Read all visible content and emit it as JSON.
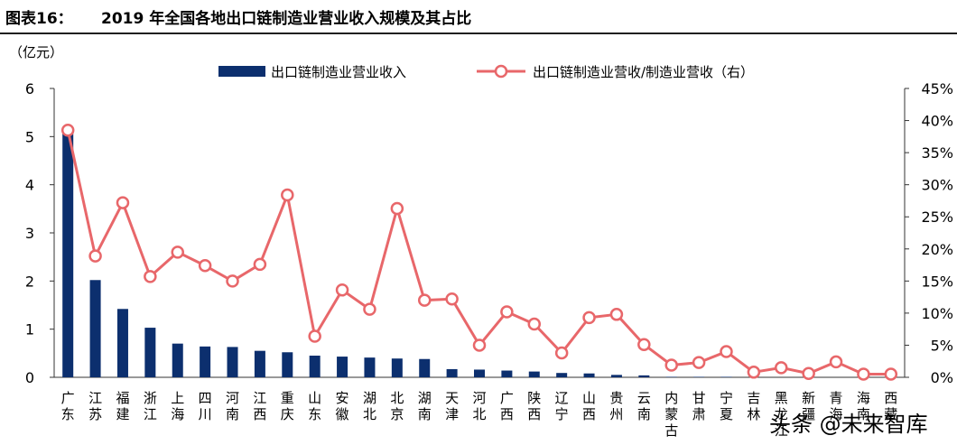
{
  "header": {
    "figure_label": "图表16：",
    "title": "2019 年全国各地出口链制造业营业收入规模及其占比"
  },
  "watermark": "头条 @未来智库",
  "colors": {
    "bar": "#0c2f6e",
    "line": "#e8676a",
    "axis": "#333333",
    "text": "#000000"
  },
  "chart_data": {
    "type": "bar+line",
    "title": "2019 年全国各地出口链制造业营业收入规模及其占比",
    "y_left_unit": "（亿元）",
    "y_left_range": [
      0,
      6
    ],
    "y_left_ticks": [
      "0",
      "1",
      "2",
      "3",
      "4",
      "5",
      "6"
    ],
    "y_right_range": [
      0,
      45
    ],
    "y_right_ticks": [
      "0%",
      "5%",
      "10%",
      "15%",
      "20%",
      "25%",
      "30%",
      "35%",
      "40%",
      "45%"
    ],
    "legend": {
      "bar": "出口链制造业营业收入",
      "line": "出口链制造业营收/制造业营收（右）"
    },
    "categories": [
      "广东",
      "江苏",
      "福建",
      "浙江",
      "上海",
      "四川",
      "河南",
      "江西",
      "重庆",
      "山东",
      "安徽",
      "湖北",
      "北京",
      "湖南",
      "天津",
      "河北",
      "广西",
      "陕西",
      "辽宁",
      "山西",
      "贵州",
      "云南",
      "内蒙古",
      "甘肃",
      "宁夏",
      "吉林",
      "黑龙江",
      "新疆",
      "青海",
      "海南",
      "西藏"
    ],
    "series": [
      {
        "name": "出口链制造业营业收入",
        "axis": "left",
        "type": "bar",
        "values": [
          5.15,
          2.02,
          1.42,
          1.03,
          0.7,
          0.64,
          0.63,
          0.55,
          0.52,
          0.45,
          0.43,
          0.41,
          0.39,
          0.38,
          0.17,
          0.16,
          0.14,
          0.12,
          0.09,
          0.08,
          0.05,
          0.04,
          0.01,
          0.01,
          0.01,
          0.0,
          0.0,
          0.0,
          0.0,
          0.0,
          0.0
        ]
      },
      {
        "name": "出口链制造业营收/制造业营收（右）",
        "axis": "right",
        "type": "line",
        "values": [
          38.5,
          18.9,
          27.2,
          15.7,
          19.5,
          17.4,
          15.0,
          17.6,
          28.4,
          6.4,
          13.6,
          10.6,
          26.3,
          12.0,
          12.2,
          5.0,
          10.2,
          8.3,
          3.8,
          9.3,
          9.8,
          5.1,
          1.9,
          2.3,
          4.0,
          0.8,
          1.5,
          0.6,
          2.4,
          0.5,
          0.5
        ]
      }
    ]
  }
}
